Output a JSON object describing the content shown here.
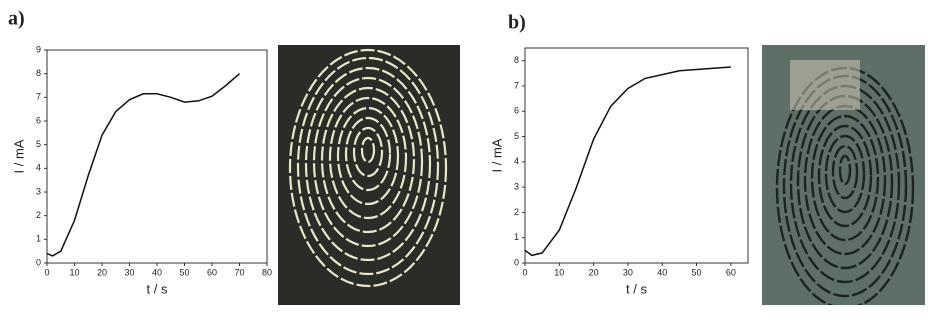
{
  "chart_data": [
    {
      "type": "line",
      "title": "a)",
      "xlabel": "t / s",
      "ylabel": "I / mA",
      "x": [
        0,
        2,
        5,
        10,
        15,
        20,
        25,
        30,
        35,
        40,
        45,
        50,
        55,
        60,
        65,
        70
      ],
      "values": [
        0.4,
        0.3,
        0.5,
        1.8,
        3.7,
        5.4,
        6.4,
        6.9,
        7.15,
        7.15,
        7.0,
        6.8,
        6.85,
        7.05,
        7.5,
        8.0
      ],
      "color": "#111111",
      "xlim": [
        0,
        80
      ],
      "xticks": [
        0,
        10,
        20,
        30,
        40,
        50,
        60,
        70,
        80
      ],
      "ylim": [
        0,
        9
      ],
      "yticks": [
        0,
        1,
        2,
        3,
        4,
        5,
        6,
        7,
        8,
        9
      ]
    },
    {
      "type": "line",
      "title": "b)",
      "xlabel": "t / s",
      "ylabel": "I / mA",
      "x": [
        0,
        2,
        5,
        10,
        15,
        20,
        25,
        30,
        35,
        40,
        45,
        50,
        55,
        60
      ],
      "values": [
        0.5,
        0.3,
        0.4,
        1.3,
        3.0,
        4.9,
        6.2,
        6.9,
        7.3,
        7.45,
        7.6,
        7.65,
        7.7,
        7.75
      ],
      "color": "#111111",
      "xlim": [
        0,
        65
      ],
      "xticks": [
        0,
        10,
        20,
        30,
        40,
        50,
        60
      ],
      "ylim": [
        0,
        8.5
      ],
      "yticks": [
        0,
        1,
        2,
        3,
        4,
        5,
        6,
        7,
        8
      ]
    }
  ]
}
